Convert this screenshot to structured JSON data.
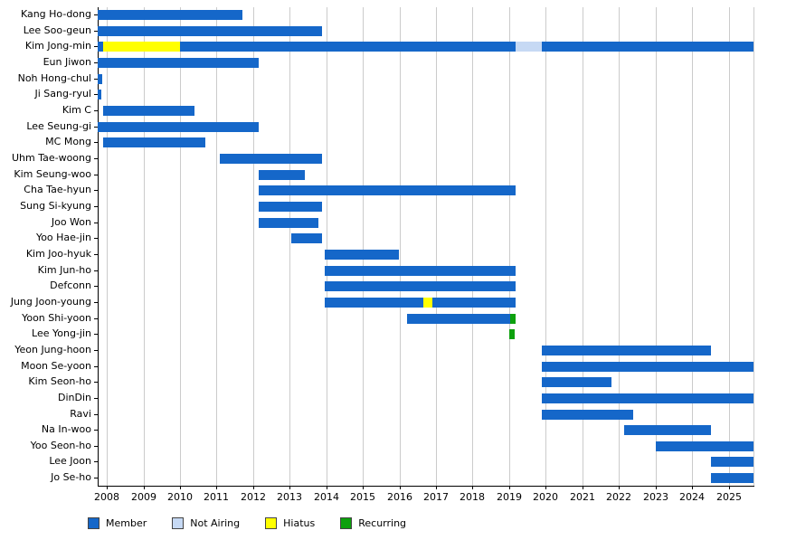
{
  "chart_data": {
    "type": "bar",
    "subtype": "gantt-timeline",
    "title": "",
    "x_axis": {
      "min": 2007.75,
      "max": 2025.68,
      "ticks": [
        2008,
        2009,
        2010,
        2011,
        2012,
        2013,
        2014,
        2015,
        2016,
        2017,
        2018,
        2019,
        2020,
        2021,
        2022,
        2023,
        2024,
        2025
      ]
    },
    "grid": true,
    "legend_position": "bottom",
    "legend": [
      {
        "key": "member",
        "label": "Member",
        "color": "#1567c9"
      },
      {
        "key": "not_airing",
        "label": "Not Airing",
        "color": "#c6d9f4"
      },
      {
        "key": "hiatus",
        "label": "Hiatus",
        "color": "#ffff00"
      },
      {
        "key": "recurring",
        "label": "Recurring",
        "color": "#0da10d"
      }
    ],
    "rows": [
      {
        "name": "Kang Ho-dong",
        "segments": [
          [
            "member",
            2007.75,
            2011.7
          ]
        ]
      },
      {
        "name": "Lee Soo-geun",
        "segments": [
          [
            "member",
            2007.75,
            2013.89
          ]
        ]
      },
      {
        "name": "Kim Jong-min",
        "segments": [
          [
            "member",
            2007.75,
            2007.9
          ],
          [
            "hiatus",
            2007.9,
            2010.0
          ],
          [
            "member",
            2010.0,
            2019.18
          ],
          [
            "not_airing",
            2019.18,
            2019.9
          ],
          [
            "member",
            2019.9,
            2025.68
          ]
        ]
      },
      {
        "name": "Eun Jiwon",
        "segments": [
          [
            "member",
            2007.75,
            2012.15
          ]
        ]
      },
      {
        "name": "Noh Hong-chul",
        "segments": [
          [
            "member",
            2007.75,
            2007.87
          ]
        ]
      },
      {
        "name": "Ji Sang-ryul",
        "segments": [
          [
            "member",
            2007.75,
            2007.85
          ]
        ]
      },
      {
        "name": "Kim C",
        "segments": [
          [
            "member",
            2007.9,
            2010.4
          ]
        ]
      },
      {
        "name": "Lee Seung-gi",
        "segments": [
          [
            "member",
            2007.75,
            2012.15
          ]
        ]
      },
      {
        "name": "MC Mong",
        "segments": [
          [
            "member",
            2007.9,
            2010.7
          ]
        ]
      },
      {
        "name": "Uhm Tae-woong",
        "segments": [
          [
            "member",
            2011.1,
            2013.89
          ]
        ]
      },
      {
        "name": "Kim Seung-woo",
        "segments": [
          [
            "member",
            2012.15,
            2013.4
          ]
        ]
      },
      {
        "name": "Cha Tae-hyun",
        "segments": [
          [
            "member",
            2012.15,
            2019.18
          ]
        ]
      },
      {
        "name": "Sung Si-kyung",
        "segments": [
          [
            "member",
            2012.15,
            2013.89
          ]
        ]
      },
      {
        "name": "Joo Won",
        "segments": [
          [
            "member",
            2012.15,
            2013.77
          ]
        ]
      },
      {
        "name": "Yoo Hae-jin",
        "segments": [
          [
            "member",
            2013.05,
            2013.89
          ]
        ]
      },
      {
        "name": "Kim Joo-hyuk",
        "segments": [
          [
            "member",
            2013.95,
            2015.97
          ]
        ]
      },
      {
        "name": "Kim Jun-ho",
        "segments": [
          [
            "member",
            2013.95,
            2019.18
          ]
        ]
      },
      {
        "name": "Defconn",
        "segments": [
          [
            "member",
            2013.95,
            2019.18
          ]
        ]
      },
      {
        "name": "Jung Joon-young",
        "segments": [
          [
            "member",
            2013.95,
            2016.65
          ],
          [
            "hiatus",
            2016.65,
            2016.9
          ],
          [
            "member",
            2016.9,
            2019.18
          ]
        ]
      },
      {
        "name": "Yoon Shi-yoon",
        "segments": [
          [
            "member",
            2016.2,
            2019.03
          ],
          [
            "recurring",
            2019.03,
            2019.18
          ]
        ]
      },
      {
        "name": "Lee Yong-jin",
        "segments": [
          [
            "recurring",
            2019.0,
            2019.15
          ]
        ]
      },
      {
        "name": "Yeon Jung-hoon",
        "segments": [
          [
            "member",
            2019.9,
            2024.53
          ]
        ]
      },
      {
        "name": "Moon Se-yoon",
        "segments": [
          [
            "member",
            2019.9,
            2025.68
          ]
        ]
      },
      {
        "name": "Kim Seon-ho",
        "segments": [
          [
            "member",
            2019.9,
            2021.8
          ]
        ]
      },
      {
        "name": "DinDin",
        "segments": [
          [
            "member",
            2019.9,
            2025.68
          ]
        ]
      },
      {
        "name": "Ravi",
        "segments": [
          [
            "member",
            2019.9,
            2022.4
          ]
        ]
      },
      {
        "name": "Na In-woo",
        "segments": [
          [
            "member",
            2022.15,
            2024.53
          ]
        ]
      },
      {
        "name": "Yoo Seon-ho",
        "segments": [
          [
            "member",
            2023.0,
            2025.68
          ]
        ]
      },
      {
        "name": "Lee Joon",
        "segments": [
          [
            "member",
            2024.53,
            2025.68
          ]
        ]
      },
      {
        "name": "Jo Se-ho",
        "segments": [
          [
            "member",
            2024.53,
            2025.68
          ]
        ]
      }
    ]
  }
}
